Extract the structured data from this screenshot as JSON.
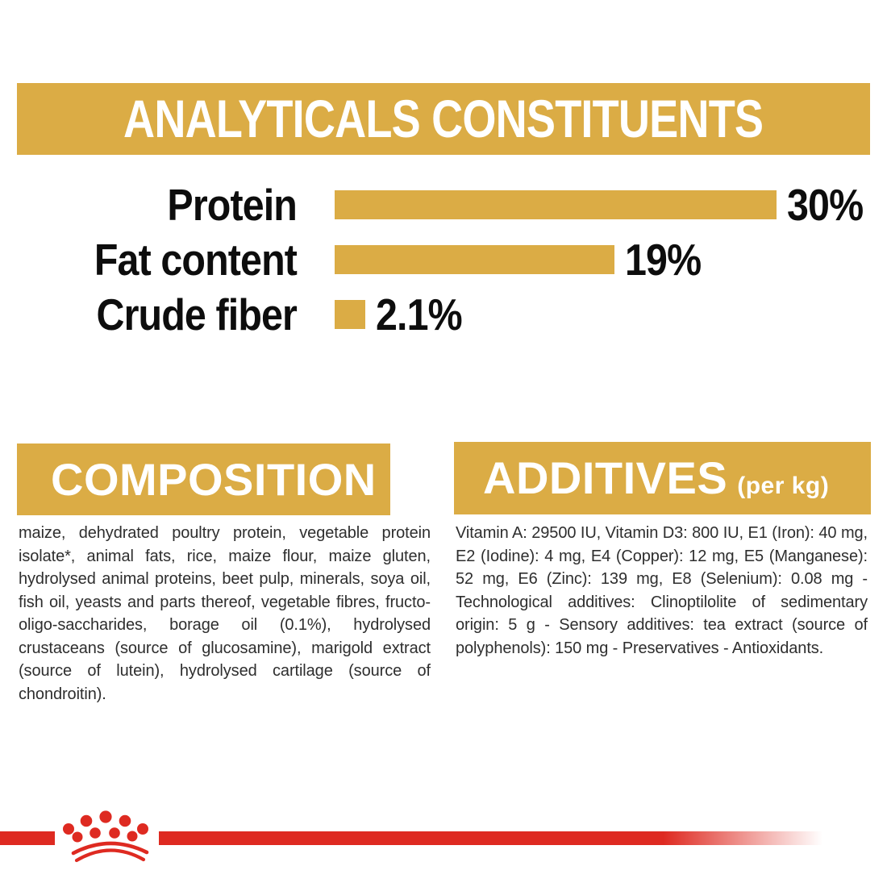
{
  "colors": {
    "gold": "#DBAC45",
    "red": "#DE2A21",
    "black": "#0d0d0d",
    "text_dark": "#2e2e2e",
    "white": "#ffffff"
  },
  "banner": {
    "title": "ANALYTICALS CONSTITUENTS"
  },
  "chart_data": {
    "type": "bar",
    "orientation": "horizontal",
    "title": "ANALYTICALS CONSTITUENTS",
    "categories": [
      "Protein",
      "Fat content",
      "Crude fiber"
    ],
    "values": [
      30,
      19,
      2.1
    ],
    "value_labels": [
      "30%",
      "19%",
      "2.1%"
    ],
    "unit": "%",
    "xlim": [
      0,
      30
    ],
    "bar_color": "#DBAC45",
    "grid": false,
    "legend": false
  },
  "composition": {
    "title": "COMPOSITION",
    "text": "maize, dehydrated poultry protein, vegetable protein isolate*, animal fats, rice, maize flour, maize gluten, hydrolysed animal proteins, beet pulp, minerals, soya oil, fish oil, yeasts and parts thereof, vegetable fibres, fructo-oligo-saccharides, borage oil (0.1%), hydrolysed crustaceans (source of glucosamine), marigold extract (source of lutein), hydrolysed cartilage (source of chondroitin)."
  },
  "additives": {
    "title": "ADDITIVES",
    "subtitle": "(per kg)",
    "text": "Vitamin A: 29500 IU, Vitamin D3: 800 IU, E1 (Iron): 40 mg, E2 (Iodine): 4 mg, E4 (Copper): 12 mg, E5 (Manganese): 52 mg, E6 (Zinc): 139 mg, E8 (Selenium): 0.08 mg - Technological additives: Clinoptilolite of sedimentary origin: 5 g - Sensory additives: tea extract (source of polyphenols): 150 mg - Preservatives - Antioxidants."
  },
  "footer": {
    "logo_icon": "royal-canin-crown-icon"
  }
}
